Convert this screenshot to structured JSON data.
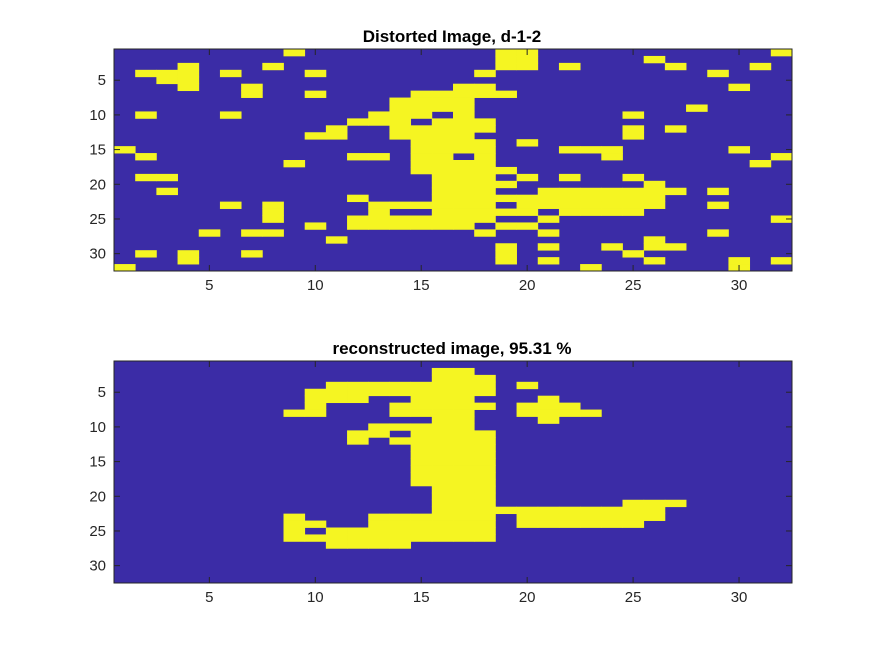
{
  "colors": {
    "background": "#3b2ca6",
    "foreground": "#f5f522"
  },
  "chart_data": [
    {
      "type": "heatmap",
      "title": "Distorted Image, d-1-2",
      "xlabel": "",
      "ylabel": "",
      "size": [
        32,
        32
      ],
      "xlim": [
        0.5,
        32.5
      ],
      "ylim": [
        0.5,
        32.5
      ],
      "y_reversed": true,
      "xticks": [
        5,
        10,
        15,
        20,
        25,
        30
      ],
      "yticks": [
        5,
        10,
        15,
        20,
        25,
        30
      ],
      "values": [
        0,
        1
      ],
      "cells": [
        [
          9,
          1
        ],
        [
          19,
          1
        ],
        [
          20,
          1
        ],
        [
          32,
          1
        ],
        [
          19,
          2
        ],
        [
          20,
          2
        ],
        [
          26,
          2
        ],
        [
          4,
          3
        ],
        [
          8,
          3
        ],
        [
          19,
          3
        ],
        [
          20,
          3
        ],
        [
          22,
          3
        ],
        [
          27,
          3
        ],
        [
          31,
          3
        ],
        [
          2,
          4
        ],
        [
          3,
          4
        ],
        [
          4,
          4
        ],
        [
          6,
          4
        ],
        [
          10,
          4
        ],
        [
          18,
          4
        ],
        [
          29,
          4
        ],
        [
          3,
          5
        ],
        [
          4,
          5
        ],
        [
          4,
          6
        ],
        [
          7,
          6
        ],
        [
          30,
          6
        ],
        [
          17,
          6
        ],
        [
          18,
          6
        ],
        [
          7,
          7
        ],
        [
          10,
          7
        ],
        [
          15,
          7
        ],
        [
          16,
          7
        ],
        [
          17,
          7
        ],
        [
          18,
          7
        ],
        [
          19,
          7
        ],
        [
          14,
          8
        ],
        [
          15,
          8
        ],
        [
          16,
          8
        ],
        [
          17,
          8
        ],
        [
          14,
          9
        ],
        [
          15,
          9
        ],
        [
          16,
          9
        ],
        [
          17,
          9
        ],
        [
          28,
          9
        ],
        [
          2,
          10
        ],
        [
          6,
          10
        ],
        [
          13,
          10
        ],
        [
          14,
          10
        ],
        [
          15,
          10
        ],
        [
          17,
          10
        ],
        [
          25,
          10
        ],
        [
          12,
          11
        ],
        [
          13,
          11
        ],
        [
          14,
          11
        ],
        [
          16,
          11
        ],
        [
          17,
          11
        ],
        [
          18,
          11
        ],
        [
          11,
          12
        ],
        [
          14,
          12
        ],
        [
          15,
          12
        ],
        [
          16,
          12
        ],
        [
          17,
          12
        ],
        [
          18,
          12
        ],
        [
          25,
          12
        ],
        [
          27,
          12
        ],
        [
          10,
          13
        ],
        [
          11,
          13
        ],
        [
          14,
          13
        ],
        [
          15,
          13
        ],
        [
          16,
          13
        ],
        [
          17,
          13
        ],
        [
          25,
          13
        ],
        [
          15,
          14
        ],
        [
          16,
          14
        ],
        [
          17,
          14
        ],
        [
          18,
          14
        ],
        [
          20,
          14
        ],
        [
          1,
          15
        ],
        [
          15,
          15
        ],
        [
          16,
          15
        ],
        [
          17,
          15
        ],
        [
          18,
          15
        ],
        [
          22,
          15
        ],
        [
          23,
          15
        ],
        [
          24,
          15
        ],
        [
          30,
          15
        ],
        [
          2,
          16
        ],
        [
          12,
          16
        ],
        [
          13,
          16
        ],
        [
          15,
          16
        ],
        [
          16,
          16
        ],
        [
          18,
          16
        ],
        [
          24,
          16
        ],
        [
          32,
          16
        ],
        [
          9,
          17
        ],
        [
          15,
          17
        ],
        [
          16,
          17
        ],
        [
          17,
          17
        ],
        [
          18,
          17
        ],
        [
          31,
          17
        ],
        [
          15,
          18
        ],
        [
          16,
          18
        ],
        [
          17,
          18
        ],
        [
          18,
          18
        ],
        [
          19,
          18
        ],
        [
          2,
          19
        ],
        [
          3,
          19
        ],
        [
          16,
          19
        ],
        [
          17,
          19
        ],
        [
          18,
          19
        ],
        [
          20,
          19
        ],
        [
          22,
          19
        ],
        [
          25,
          19
        ],
        [
          16,
          20
        ],
        [
          17,
          20
        ],
        [
          18,
          20
        ],
        [
          19,
          20
        ],
        [
          26,
          20
        ],
        [
          3,
          21
        ],
        [
          16,
          21
        ],
        [
          17,
          21
        ],
        [
          18,
          21
        ],
        [
          21,
          21
        ],
        [
          22,
          21
        ],
        [
          23,
          21
        ],
        [
          24,
          21
        ],
        [
          25,
          21
        ],
        [
          26,
          21
        ],
        [
          27,
          21
        ],
        [
          29,
          21
        ],
        [
          12,
          22
        ],
        [
          16,
          22
        ],
        [
          17,
          22
        ],
        [
          18,
          22
        ],
        [
          19,
          22
        ],
        [
          20,
          22
        ],
        [
          21,
          22
        ],
        [
          22,
          22
        ],
        [
          23,
          22
        ],
        [
          24,
          22
        ],
        [
          25,
          22
        ],
        [
          26,
          22
        ],
        [
          6,
          23
        ],
        [
          8,
          23
        ],
        [
          13,
          23
        ],
        [
          14,
          23
        ],
        [
          15,
          23
        ],
        [
          16,
          23
        ],
        [
          17,
          23
        ],
        [
          18,
          23
        ],
        [
          20,
          23
        ],
        [
          21,
          23
        ],
        [
          22,
          23
        ],
        [
          23,
          23
        ],
        [
          24,
          23
        ],
        [
          25,
          23
        ],
        [
          26,
          23
        ],
        [
          29,
          23
        ],
        [
          8,
          24
        ],
        [
          13,
          24
        ],
        [
          16,
          24
        ],
        [
          17,
          24
        ],
        [
          18,
          24
        ],
        [
          19,
          24
        ],
        [
          20,
          24
        ],
        [
          22,
          24
        ],
        [
          23,
          24
        ],
        [
          24,
          24
        ],
        [
          25,
          24
        ],
        [
          8,
          25
        ],
        [
          12,
          25
        ],
        [
          13,
          25
        ],
        [
          14,
          25
        ],
        [
          15,
          25
        ],
        [
          16,
          25
        ],
        [
          17,
          25
        ],
        [
          18,
          25
        ],
        [
          21,
          25
        ],
        [
          32,
          25
        ],
        [
          10,
          26
        ],
        [
          12,
          26
        ],
        [
          13,
          26
        ],
        [
          14,
          26
        ],
        [
          15,
          26
        ],
        [
          16,
          26
        ],
        [
          17,
          26
        ],
        [
          19,
          26
        ],
        [
          20,
          26
        ],
        [
          5,
          27
        ],
        [
          7,
          27
        ],
        [
          8,
          27
        ],
        [
          18,
          27
        ],
        [
          21,
          27
        ],
        [
          29,
          27
        ],
        [
          11,
          28
        ],
        [
          26,
          28
        ],
        [
          19,
          29
        ],
        [
          21,
          29
        ],
        [
          24,
          29
        ],
        [
          26,
          29
        ],
        [
          27,
          29
        ],
        [
          2,
          30
        ],
        [
          4,
          30
        ],
        [
          7,
          30
        ],
        [
          19,
          30
        ],
        [
          25,
          30
        ],
        [
          4,
          31
        ],
        [
          19,
          31
        ],
        [
          21,
          31
        ],
        [
          26,
          31
        ],
        [
          30,
          31
        ],
        [
          32,
          31
        ],
        [
          1,
          32
        ],
        [
          23,
          32
        ],
        [
          30,
          32
        ]
      ]
    },
    {
      "type": "heatmap",
      "title": "reconstructed image, 95.31 %",
      "xlabel": "",
      "ylabel": "",
      "size": [
        32,
        32
      ],
      "xlim": [
        0.5,
        32.5
      ],
      "ylim": [
        0.5,
        32.5
      ],
      "y_reversed": true,
      "xticks": [
        5,
        10,
        15,
        20,
        25,
        30
      ],
      "yticks": [
        5,
        10,
        15,
        20,
        25,
        30
      ],
      "values": [
        0,
        1
      ],
      "cells": [
        [
          16,
          2
        ],
        [
          17,
          2
        ],
        [
          16,
          3
        ],
        [
          17,
          3
        ],
        [
          18,
          3
        ],
        [
          11,
          4
        ],
        [
          12,
          4
        ],
        [
          13,
          4
        ],
        [
          14,
          4
        ],
        [
          15,
          4
        ],
        [
          16,
          4
        ],
        [
          17,
          4
        ],
        [
          18,
          4
        ],
        [
          20,
          4
        ],
        [
          10,
          5
        ],
        [
          11,
          5
        ],
        [
          12,
          5
        ],
        [
          13,
          5
        ],
        [
          14,
          5
        ],
        [
          15,
          5
        ],
        [
          16,
          5
        ],
        [
          17,
          5
        ],
        [
          18,
          5
        ],
        [
          10,
          6
        ],
        [
          11,
          6
        ],
        [
          12,
          6
        ],
        [
          15,
          6
        ],
        [
          16,
          6
        ],
        [
          17,
          6
        ],
        [
          21,
          6
        ],
        [
          10,
          7
        ],
        [
          14,
          7
        ],
        [
          15,
          7
        ],
        [
          16,
          7
        ],
        [
          17,
          7
        ],
        [
          18,
          7
        ],
        [
          20,
          7
        ],
        [
          21,
          7
        ],
        [
          22,
          7
        ],
        [
          9,
          8
        ],
        [
          10,
          8
        ],
        [
          14,
          8
        ],
        [
          15,
          8
        ],
        [
          16,
          8
        ],
        [
          17,
          8
        ],
        [
          20,
          8
        ],
        [
          21,
          8
        ],
        [
          22,
          8
        ],
        [
          23,
          8
        ],
        [
          16,
          9
        ],
        [
          17,
          9
        ],
        [
          21,
          9
        ],
        [
          13,
          10
        ],
        [
          14,
          10
        ],
        [
          15,
          10
        ],
        [
          16,
          10
        ],
        [
          17,
          10
        ],
        [
          12,
          11
        ],
        [
          13,
          11
        ],
        [
          15,
          11
        ],
        [
          16,
          11
        ],
        [
          17,
          11
        ],
        [
          18,
          11
        ],
        [
          12,
          12
        ],
        [
          14,
          12
        ],
        [
          15,
          12
        ],
        [
          16,
          12
        ],
        [
          17,
          12
        ],
        [
          18,
          12
        ],
        [
          15,
          13
        ],
        [
          16,
          13
        ],
        [
          17,
          13
        ],
        [
          18,
          13
        ],
        [
          15,
          14
        ],
        [
          16,
          14
        ],
        [
          17,
          14
        ],
        [
          18,
          14
        ],
        [
          15,
          15
        ],
        [
          16,
          15
        ],
        [
          17,
          15
        ],
        [
          18,
          15
        ],
        [
          15,
          16
        ],
        [
          16,
          16
        ],
        [
          17,
          16
        ],
        [
          18,
          16
        ],
        [
          15,
          17
        ],
        [
          16,
          17
        ],
        [
          17,
          17
        ],
        [
          18,
          17
        ],
        [
          15,
          18
        ],
        [
          16,
          18
        ],
        [
          17,
          18
        ],
        [
          18,
          18
        ],
        [
          16,
          19
        ],
        [
          17,
          19
        ],
        [
          18,
          19
        ],
        [
          16,
          20
        ],
        [
          17,
          20
        ],
        [
          18,
          20
        ],
        [
          16,
          21
        ],
        [
          17,
          21
        ],
        [
          18,
          21
        ],
        [
          25,
          21
        ],
        [
          26,
          21
        ],
        [
          27,
          21
        ],
        [
          16,
          22
        ],
        [
          17,
          22
        ],
        [
          18,
          22
        ],
        [
          19,
          22
        ],
        [
          20,
          22
        ],
        [
          21,
          22
        ],
        [
          22,
          22
        ],
        [
          23,
          22
        ],
        [
          24,
          22
        ],
        [
          25,
          22
        ],
        [
          26,
          22
        ],
        [
          9,
          23
        ],
        [
          13,
          23
        ],
        [
          14,
          23
        ],
        [
          15,
          23
        ],
        [
          16,
          23
        ],
        [
          17,
          23
        ],
        [
          18,
          23
        ],
        [
          20,
          23
        ],
        [
          21,
          23
        ],
        [
          22,
          23
        ],
        [
          23,
          23
        ],
        [
          24,
          23
        ],
        [
          25,
          23
        ],
        [
          26,
          23
        ],
        [
          9,
          24
        ],
        [
          10,
          24
        ],
        [
          13,
          24
        ],
        [
          14,
          24
        ],
        [
          15,
          24
        ],
        [
          16,
          24
        ],
        [
          17,
          24
        ],
        [
          18,
          24
        ],
        [
          20,
          24
        ],
        [
          21,
          24
        ],
        [
          22,
          24
        ],
        [
          23,
          24
        ],
        [
          24,
          24
        ],
        [
          25,
          24
        ],
        [
          9,
          25
        ],
        [
          11,
          25
        ],
        [
          12,
          25
        ],
        [
          13,
          25
        ],
        [
          14,
          25
        ],
        [
          15,
          25
        ],
        [
          16,
          25
        ],
        [
          17,
          25
        ],
        [
          18,
          25
        ],
        [
          9,
          26
        ],
        [
          10,
          26
        ],
        [
          11,
          26
        ],
        [
          12,
          26
        ],
        [
          13,
          26
        ],
        [
          14,
          26
        ],
        [
          15,
          26
        ],
        [
          16,
          26
        ],
        [
          17,
          26
        ],
        [
          18,
          26
        ],
        [
          11,
          27
        ],
        [
          12,
          27
        ],
        [
          13,
          27
        ],
        [
          14,
          27
        ]
      ]
    }
  ]
}
